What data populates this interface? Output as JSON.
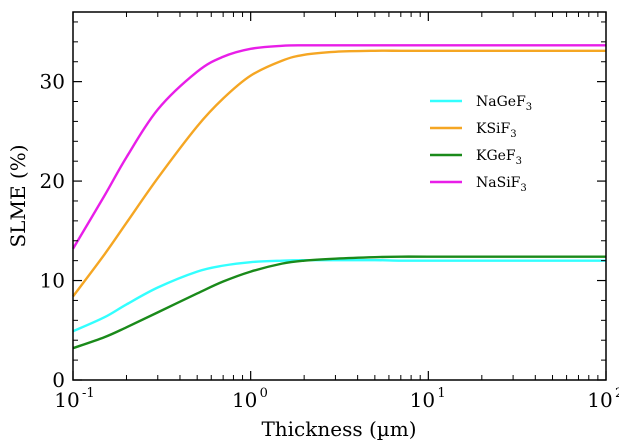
{
  "chart_data": {
    "type": "line",
    "xscale": "log",
    "xlabel": "Thickness (µm)",
    "ylabel": "SLME (%)",
    "xlim": [
      0.1,
      100
    ],
    "ylim": [
      0,
      37
    ],
    "x_ticks": [
      {
        "base": "10",
        "exp": "-1",
        "value": 0.1
      },
      {
        "base": "10",
        "exp": "0",
        "value": 1
      },
      {
        "base": "10",
        "exp": "1",
        "value": 10
      },
      {
        "base": "10",
        "exp": "2",
        "value": 100
      }
    ],
    "y_ticks": [
      {
        "label": "0",
        "value": 0
      },
      {
        "label": "10",
        "value": 10
      },
      {
        "label": "20",
        "value": 20
      },
      {
        "label": "30",
        "value": 30
      }
    ],
    "legend_position": "right",
    "x": [
      0.1,
      0.15,
      0.2,
      0.3,
      0.5,
      0.7,
      1,
      1.5,
      2,
      3,
      5,
      7,
      10,
      20,
      50,
      100
    ],
    "series": [
      {
        "base": "NaGeF",
        "sub": "3",
        "color": "#33ffff",
        "values": [
          4.9,
          6.3,
          7.6,
          9.3,
          10.9,
          11.5,
          11.85,
          12.0,
          12.05,
          12.05,
          12.05,
          12.0,
          12.0,
          12.0,
          12.0,
          12.0
        ]
      },
      {
        "base": "KSiF",
        "sub": "3",
        "color": "#f5a623",
        "values": [
          8.4,
          12.6,
          15.8,
          20.3,
          25.5,
          28.3,
          30.6,
          32.1,
          32.7,
          33.0,
          33.1,
          33.1,
          33.1,
          33.1,
          33.1,
          33.1
        ]
      },
      {
        "base": "KGeF",
        "sub": "3",
        "color": "#1a8a1a",
        "values": [
          3.2,
          4.3,
          5.3,
          6.8,
          8.7,
          9.9,
          10.9,
          11.7,
          12.0,
          12.2,
          12.35,
          12.4,
          12.4,
          12.4,
          12.4,
          12.4
        ]
      },
      {
        "base": "NaSiF",
        "sub": "3",
        "color": "#e81ee8",
        "values": [
          13.2,
          18.5,
          22.4,
          27.2,
          31.0,
          32.5,
          33.3,
          33.6,
          33.65,
          33.65,
          33.65,
          33.65,
          33.65,
          33.65,
          33.65,
          33.65
        ]
      }
    ]
  }
}
